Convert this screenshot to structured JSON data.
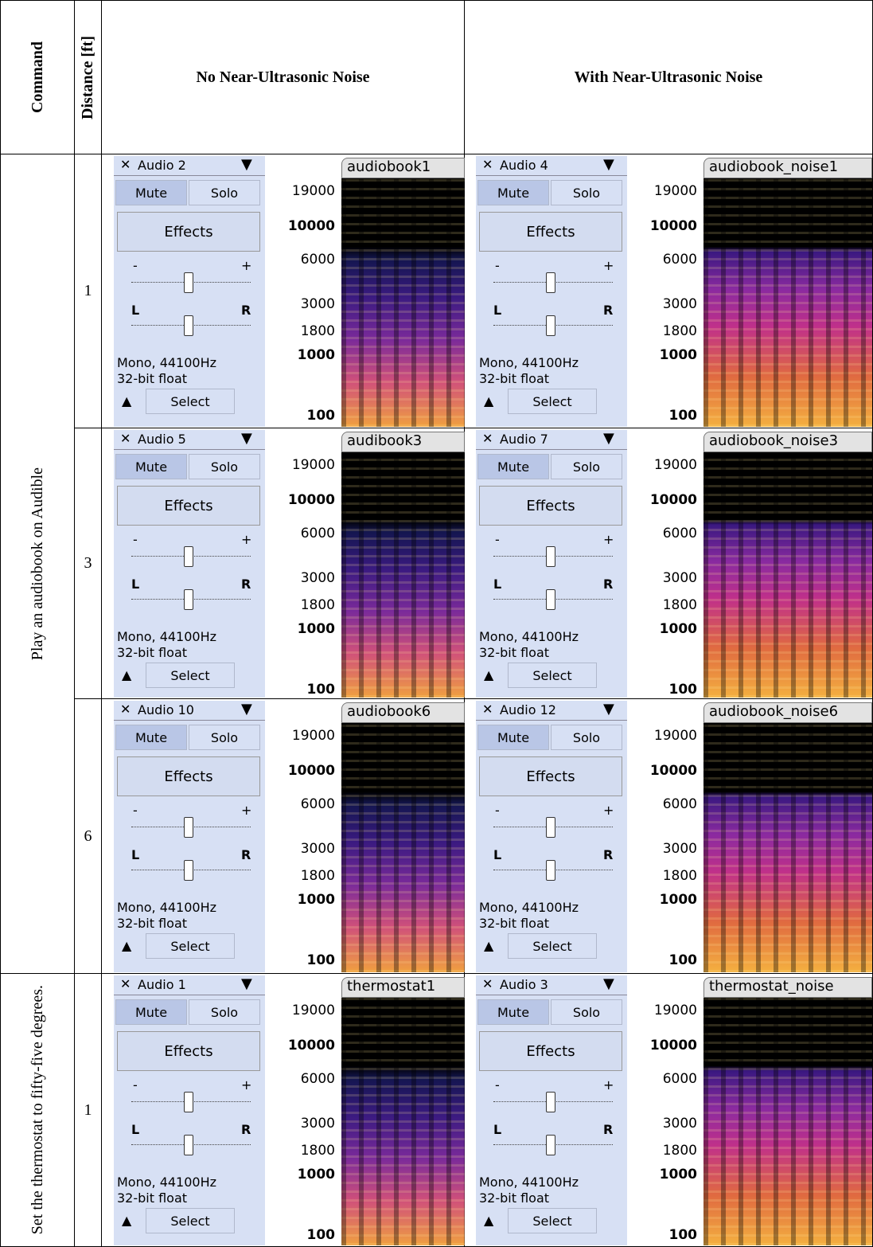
{
  "header": {
    "command": "Command",
    "distance": "Distance [ft]",
    "no_noise": "No Near-Ultrasonic Noise",
    "with_noise": "With Near-Ultrasonic Noise"
  },
  "track_controls": {
    "mute": "Mute",
    "solo": "Solo",
    "effects": "Effects",
    "gain_min": "-",
    "gain_max": "+",
    "pan_left": "L",
    "pan_right": "R",
    "format": "Mono, 44100Hz",
    "bit_depth": "32-bit float",
    "select": "Select"
  },
  "frequency_labels": [
    "19000",
    "10000",
    "6000",
    "3000",
    "1800",
    "1000",
    "100"
  ],
  "commands": [
    {
      "command": "Play an audiobook on Audible",
      "trials": [
        {
          "distance": "1",
          "no_noise": {
            "track": "Audio 2",
            "clip": "audiobook1"
          },
          "with_noise": {
            "track": "Audio 4",
            "clip": "audiobook_noise1"
          }
        },
        {
          "distance": "3",
          "no_noise": {
            "track": "Audio 5",
            "clip": "audibook3"
          },
          "with_noise": {
            "track": "Audio 7",
            "clip": "audiobook_noise3"
          }
        },
        {
          "distance": "6",
          "no_noise": {
            "track": "Audio 10",
            "clip": "audiobook6"
          },
          "with_noise": {
            "track": "Audio 12",
            "clip": "audiobook_noise6"
          }
        }
      ]
    },
    {
      "command": "Set the thermostat to fifty-five degrees.",
      "trials": [
        {
          "distance": "1",
          "no_noise": {
            "track": "Audio 1",
            "clip": "thermostat1"
          },
          "with_noise": {
            "track": "Audio 3",
            "clip": "thermostat_noise"
          }
        }
      ]
    }
  ]
}
